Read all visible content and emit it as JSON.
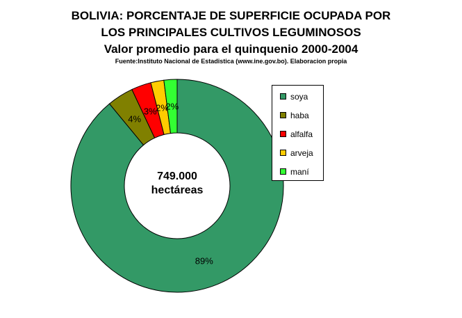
{
  "chart_data": {
    "type": "pie",
    "title": "BOLIVIA:  PORCENTAJE DE SUPERFICIE OCUPADA POR",
    "title_line2": "LOS PRINCIPALES CULTIVOS LEGUMINOSOS",
    "subtitle": "Valor promedio para el quinquenio 2000-2004",
    "source": "Fuente:Instituto Nacional de Estadistica (www.ine.gov.bo). Elaboracion propia",
    "center_value": "749.000",
    "center_unit": "hectáreas",
    "categories": [
      "soya",
      "haba",
      "alfalfa",
      "arveja",
      "maní"
    ],
    "values": [
      89,
      4,
      3,
      2,
      2
    ],
    "labels": [
      "89%",
      "4%",
      "3%",
      "2%",
      "2%"
    ],
    "colors": [
      "#339966",
      "#808000",
      "#ff0000",
      "#ffcc00",
      "#33ff33"
    ],
    "legend_position": "right"
  }
}
